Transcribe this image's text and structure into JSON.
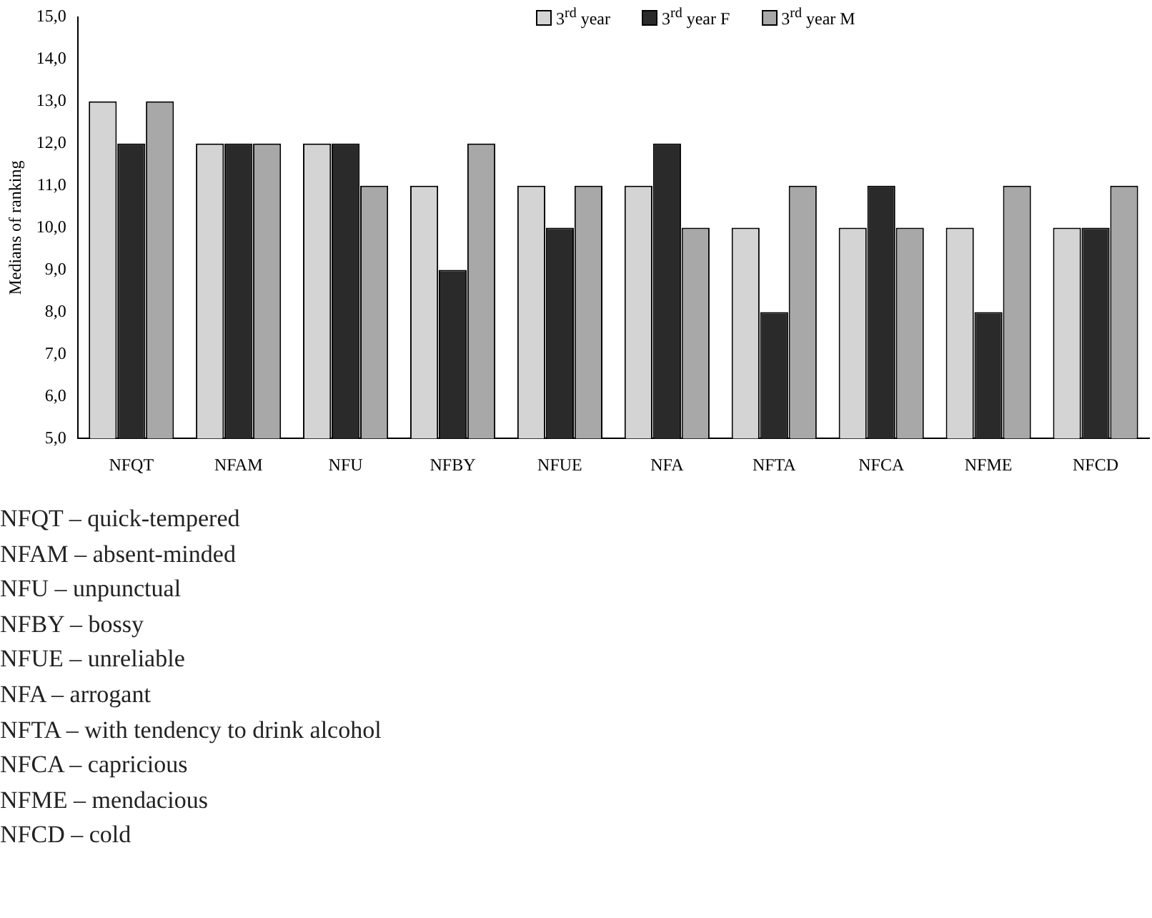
{
  "chart_data": {
    "type": "bar",
    "ylabel": "Medians of ranking",
    "categories": [
      "NFQT",
      "NFAM",
      "NFU",
      "NFBY",
      "NFUE",
      "NFA",
      "NFTA",
      "NFCA",
      "NFME",
      "NFCD"
    ],
    "series": [
      {
        "name": "3$^{rd}$ year",
        "color": "#d4d4d4",
        "values": [
          13,
          12,
          12,
          11,
          11,
          11,
          10,
          10,
          10,
          10
        ]
      },
      {
        "name": "3$^{rd}$ year F",
        "color": "#2a2a2a",
        "values": [
          12,
          12,
          12,
          9,
          10,
          12,
          8,
          11,
          8,
          10
        ]
      },
      {
        "name": "3$^{rd}$ year M",
        "color": "#a8a8a8",
        "values": [
          13,
          12,
          11,
          12,
          11,
          10,
          11,
          10,
          11,
          11
        ]
      }
    ],
    "ylim": [
      5,
      15
    ],
    "yticks": [
      {
        "value": 5,
        "label": "5,0"
      },
      {
        "value": 6,
        "label": "6,0"
      },
      {
        "value": 7,
        "label": "7,0"
      },
      {
        "value": 8,
        "label": "8,0"
      },
      {
        "value": 9,
        "label": "9,0"
      },
      {
        "value": 10,
        "label": "10,0"
      },
      {
        "value": 11,
        "label": "11,0"
      },
      {
        "value": 12,
        "label": "12,0"
      },
      {
        "value": 13,
        "label": "13,0"
      },
      {
        "value": 14,
        "label": "14,0"
      },
      {
        "value": 15,
        "label": "15,0"
      }
    ],
    "grid": false,
    "legend": "top right",
    "annotations": [
      "NFQT – quick-tempered",
      "NFAM – absent-minded",
      "NFU – unpunctual",
      "NFBY – bossy",
      "NFUE – unreliable",
      "NFA – arrogant",
      "NFTA – with tendency to drink alcohol",
      "NFCA – capricious",
      "NFME – mendacious",
      "NFCD – cold"
    ]
  }
}
